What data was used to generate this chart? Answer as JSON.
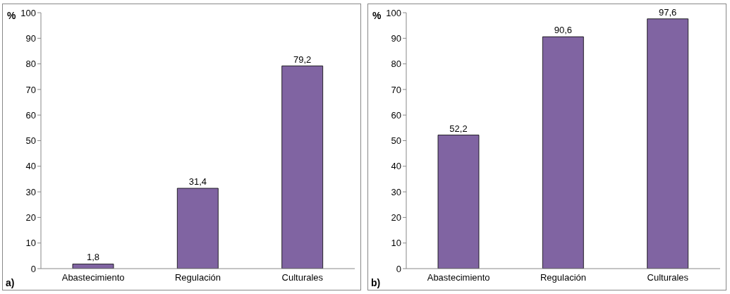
{
  "chart_data": [
    {
      "type": "bar",
      "ylabel": "%",
      "annotations": [
        "a)"
      ],
      "categories": [
        "Abastecimiento",
        "Regulación",
        "Culturales"
      ],
      "values": [
        1.8,
        31.4,
        79.2
      ],
      "value_labels": [
        "1,8",
        "31,4",
        "79,2"
      ],
      "color": "#8064a2",
      "ylim": [
        0,
        100
      ],
      "yticks": [
        0,
        10,
        20,
        30,
        40,
        50,
        60,
        70,
        80,
        90,
        100
      ],
      "grid": false,
      "legend": false
    },
    {
      "type": "bar",
      "ylabel": "%",
      "annotations": [
        "b)"
      ],
      "categories": [
        "Abastecimiento",
        "Regulación",
        "Culturales"
      ],
      "values": [
        52.2,
        90.6,
        97.6
      ],
      "value_labels": [
        "52,2",
        "90,6",
        "97,6"
      ],
      "color": "#8064a2",
      "ylim": [
        0,
        100
      ],
      "yticks": [
        0,
        10,
        20,
        30,
        40,
        50,
        60,
        70,
        80,
        90,
        100
      ],
      "grid": false,
      "legend": false
    }
  ]
}
